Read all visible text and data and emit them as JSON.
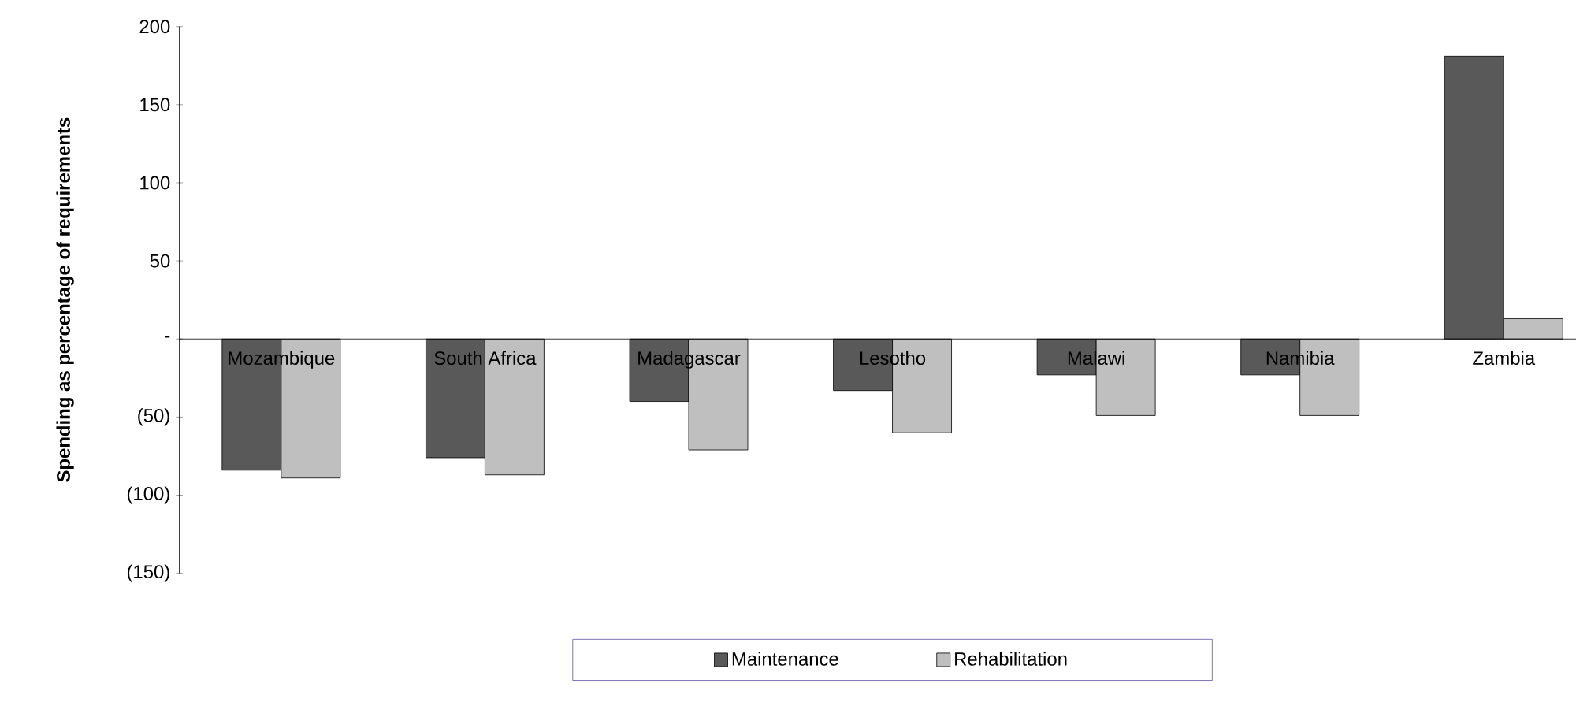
{
  "chart_data": {
    "type": "bar",
    "ylabel": "Spending as percentage of requirements",
    "categories": [
      "Mozambique",
      "South Africa",
      "Madagascar",
      "Lesotho",
      "Malawi",
      "Namibia",
      "Zambia"
    ],
    "series": [
      {
        "name": "Maintenance",
        "color": "#595959",
        "values": [
          -84,
          -76,
          -40,
          -33,
          -23,
          -23,
          181
        ]
      },
      {
        "name": "Rehabilitation",
        "color": "#bfbfbf",
        "values": [
          -89,
          -87,
          -71,
          -60,
          -49,
          -49,
          13
        ]
      }
    ],
    "ylim": [
      -150,
      200
    ],
    "yticks": [
      {
        "value": -150,
        "label": "(150)"
      },
      {
        "value": -100,
        "label": "(100)"
      },
      {
        "value": -50,
        "label": "(50)"
      },
      {
        "value": 0,
        "label": "-"
      },
      50,
      100,
      150,
      200
    ],
    "legend": "bottom",
    "grid": false
  }
}
